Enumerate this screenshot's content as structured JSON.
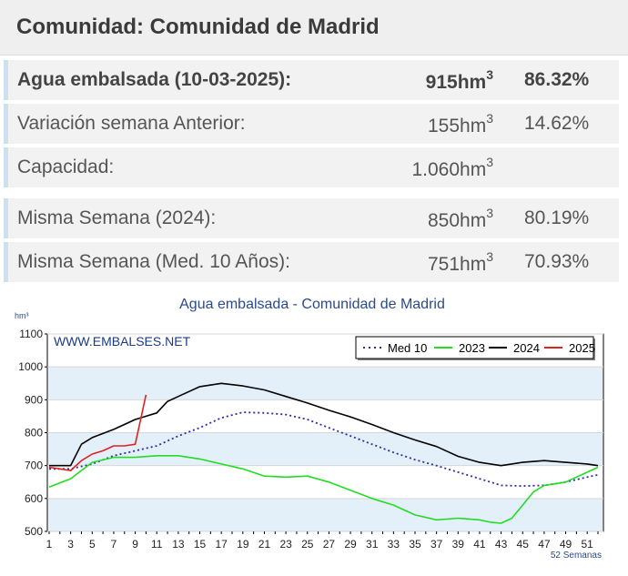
{
  "header": {
    "title": "Comunidad: Comunidad de Madrid"
  },
  "rows": [
    {
      "label": "Agua embalsada (10-03-2025):",
      "value": "915hm",
      "unit_sup": "3",
      "pct": "86.32%"
    },
    {
      "label": "Variación semana Anterior:",
      "value": "155hm",
      "unit_sup": "3",
      "pct": "14.62%"
    },
    {
      "label": "Capacidad:",
      "value": "1.060hm",
      "unit_sup": "3",
      "pct": ""
    },
    {
      "label": "Misma Semana (2024):",
      "value": "850hm",
      "unit_sup": "3",
      "pct": "80.19%"
    },
    {
      "label": "Misma Semana (Med. 10 Años):",
      "value": "751hm",
      "unit_sup": "3",
      "pct": "70.93%"
    }
  ],
  "chart_data": {
    "type": "line",
    "title": "Agua embalsada - Comunidad de Madrid",
    "ylabel": "hm³",
    "xlabel": "52 Semanas",
    "watermark": "WWW.EMBALSES.NET",
    "ylim": [
      500,
      1100
    ],
    "yticks": [
      500,
      600,
      700,
      800,
      900,
      1000,
      1100
    ],
    "xlim": [
      1,
      52
    ],
    "xticks": [
      1,
      3,
      5,
      7,
      9,
      11,
      13,
      15,
      17,
      19,
      21,
      23,
      25,
      27,
      29,
      31,
      33,
      35,
      37,
      39,
      41,
      43,
      45,
      47,
      49,
      51
    ],
    "grid": true,
    "legend": "top-right",
    "series": [
      {
        "name": "Med 10",
        "color": "#2b2bb0",
        "style": "dotted",
        "x": [
          1,
          3,
          5,
          7,
          9,
          11,
          13,
          15,
          17,
          19,
          21,
          23,
          25,
          27,
          29,
          31,
          33,
          35,
          37,
          39,
          41,
          43,
          45,
          47,
          49,
          51,
          52
        ],
        "values": [
          690,
          690,
          705,
          730,
          745,
          760,
          790,
          815,
          845,
          862,
          860,
          855,
          840,
          815,
          790,
          765,
          740,
          718,
          700,
          680,
          660,
          640,
          638,
          640,
          650,
          665,
          672
        ]
      },
      {
        "name": "2023",
        "color": "#22dd22",
        "style": "solid",
        "x": [
          1,
          3,
          5,
          7,
          9,
          11,
          13,
          15,
          17,
          19,
          21,
          23,
          25,
          27,
          29,
          31,
          33,
          35,
          37,
          39,
          41,
          42,
          43,
          44,
          45,
          46,
          47,
          49,
          51,
          52
        ],
        "values": [
          635,
          660,
          710,
          725,
          725,
          730,
          730,
          720,
          705,
          690,
          668,
          665,
          668,
          650,
          625,
          600,
          580,
          550,
          535,
          540,
          535,
          528,
          525,
          540,
          580,
          620,
          640,
          650,
          680,
          695
        ]
      },
      {
        "name": "2024",
        "color": "#000000",
        "style": "solid",
        "x": [
          1,
          3,
          4,
          5,
          7,
          9,
          11,
          12,
          13,
          15,
          17,
          19,
          21,
          23,
          25,
          27,
          29,
          31,
          33,
          35,
          37,
          39,
          41,
          43,
          45,
          47,
          49,
          51,
          52
        ],
        "values": [
          700,
          700,
          765,
          785,
          810,
          840,
          860,
          895,
          910,
          940,
          950,
          942,
          930,
          910,
          890,
          868,
          848,
          825,
          800,
          778,
          758,
          728,
          710,
          700,
          710,
          715,
          710,
          705,
          700
        ]
      },
      {
        "name": "2025",
        "color": "#dd2222",
        "style": "solid",
        "x": [
          1,
          2,
          3,
          4,
          5,
          6,
          7,
          8,
          9,
          10
        ],
        "values": [
          695,
          690,
          685,
          715,
          735,
          745,
          760,
          760,
          765,
          915
        ]
      }
    ]
  }
}
